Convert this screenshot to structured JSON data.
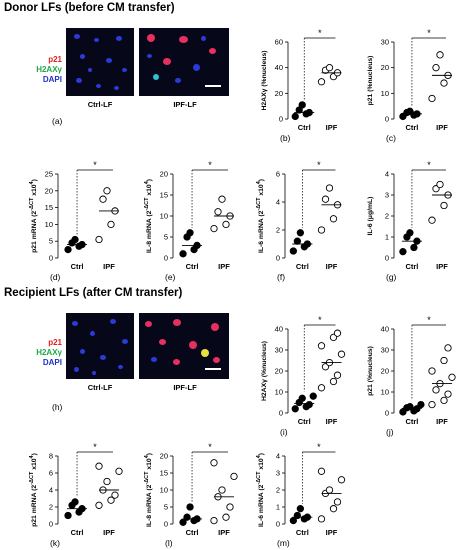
{
  "sections": [
    {
      "title": "Donor LFs (before CM transfer)"
    },
    {
      "title": "Recipient LFs (after CM transfer)"
    }
  ],
  "micrographs": [
    {
      "letter": "(a)",
      "left_label": "Ctrl-LF",
      "right_label": "IPF-LF",
      "stain_labels": [
        {
          "text": "p21",
          "color": "#e0201e"
        },
        {
          "text": "H2AXγ",
          "color": "#1ea84a"
        },
        {
          "text": "DAPI",
          "color": "#2030c8"
        }
      ]
    },
    {
      "letter": "(h)",
      "left_label": "Ctrl-LF",
      "right_label": "IPF-LF",
      "stain_labels": [
        {
          "text": "p21",
          "color": "#e0201e"
        },
        {
          "text": "H2AXγ",
          "color": "#1ea84a"
        },
        {
          "text": "DAPI",
          "color": "#2030c8"
        }
      ]
    }
  ],
  "chart_data": [
    {
      "id": "b",
      "type": "scatter",
      "letter": "(b)",
      "ylabel": "H2AXγ (%nucleus)",
      "ylim": [
        0,
        60
      ],
      "yticks": [
        "0",
        "20",
        "40",
        "60"
      ],
      "categories": [
        "Ctrl",
        "IPF"
      ],
      "significance": "*",
      "series": [
        {
          "values": [
            2,
            4,
            5,
            7,
            11
          ]
        },
        {
          "values": [
            29,
            33,
            36,
            38,
            40
          ]
        }
      ]
    },
    {
      "id": "c",
      "type": "scatter",
      "letter": "(c)",
      "ylabel": "p21 (%nucleus)",
      "ylim": [
        0,
        30
      ],
      "yticks": [
        "0",
        "10",
        "20",
        "30"
      ],
      "categories": [
        "Ctrl",
        "IPF"
      ],
      "significance": "*",
      "series": [
        {
          "values": [
            1,
            1.5,
            2,
            2.5,
            3
          ]
        },
        {
          "values": [
            8,
            14,
            17,
            20,
            25
          ]
        }
      ]
    },
    {
      "id": "d",
      "type": "scatter",
      "letter": "(d)",
      "ylabel": "p21 mRNA (2^-ΔCT x10^4)",
      "ylim": [
        0,
        25
      ],
      "yticks": [
        "0",
        "5",
        "10",
        "15",
        "20",
        "25"
      ],
      "categories": [
        "Ctrl",
        "IPF"
      ],
      "significance": "*",
      "series": [
        {
          "values": [
            2.5,
            3.5,
            4,
            4.5,
            5.5
          ]
        },
        {
          "values": [
            5.5,
            10,
            14,
            17.5,
            20
          ]
        }
      ]
    },
    {
      "id": "e",
      "type": "scatter",
      "letter": "(e)",
      "ylabel": "IL-8 mRNA (2^-ΔCT x10^4)",
      "ylim": [
        0,
        20
      ],
      "yticks": [
        "0",
        "5",
        "10",
        "15",
        "20"
      ],
      "categories": [
        "Ctrl",
        "IPF"
      ],
      "significance": "*",
      "series": [
        {
          "values": [
            1,
            2,
            3,
            5,
            6
          ]
        },
        {
          "values": [
            7,
            8,
            10,
            11,
            14
          ]
        }
      ]
    },
    {
      "id": "f",
      "type": "scatter",
      "letter": "(f)",
      "ylabel": "IL-6 mRNA (2^-ΔCT x10^4)",
      "ylim": [
        0,
        6
      ],
      "yticks": [
        "0",
        "2",
        "4",
        "6"
      ],
      "categories": [
        "Ctrl",
        "IPF"
      ],
      "significance": "*",
      "series": [
        {
          "values": [
            0.5,
            0.8,
            1.0,
            1.2,
            1.8
          ]
        },
        {
          "values": [
            2.0,
            2.8,
            3.8,
            4.2,
            5.0
          ]
        }
      ]
    },
    {
      "id": "g",
      "type": "scatter",
      "letter": "(g)",
      "ylabel": "IL-6 (μg/mL)",
      "ylim": [
        0,
        4
      ],
      "yticks": [
        "0",
        "1",
        "2",
        "3",
        "4"
      ],
      "categories": [
        "Ctrl",
        "IPF"
      ],
      "significance": "*",
      "series": [
        {
          "values": [
            0.3,
            0.5,
            0.8,
            1.0,
            1.2
          ]
        },
        {
          "values": [
            1.8,
            2.5,
            3.0,
            3.3,
            3.5
          ]
        }
      ]
    },
    {
      "id": "i",
      "type": "scatter",
      "letter": "(i)",
      "ylabel": "H2AXγ (%nucleus)",
      "ylim": [
        0,
        40
      ],
      "yticks": [
        "0",
        "10",
        "20",
        "30",
        "40"
      ],
      "categories": [
        "Ctrl",
        "IPF"
      ],
      "significance": "*",
      "series": [
        {
          "values": [
            2,
            3,
            4,
            5,
            7,
            8
          ]
        },
        {
          "values": [
            12,
            15,
            18,
            22,
            24,
            28,
            32,
            36,
            38
          ]
        }
      ]
    },
    {
      "id": "j",
      "type": "scatter",
      "letter": "(j)",
      "ylabel": "p21 (%nucleus)",
      "ylim": [
        0,
        40
      ],
      "yticks": [
        "0",
        "10",
        "20",
        "30",
        "40"
      ],
      "categories": [
        "Ctrl",
        "IPF"
      ],
      "significance": "*",
      "series": [
        {
          "values": [
            0.5,
            1,
            2,
            2.5,
            3,
            4
          ]
        },
        {
          "values": [
            4,
            6,
            9,
            11,
            14,
            17,
            20,
            25,
            31
          ]
        }
      ]
    },
    {
      "id": "k",
      "type": "scatter",
      "letter": "(k)",
      "ylabel": "p21 mRNA (2^-ΔCT x10^4)",
      "ylim": [
        0,
        8
      ],
      "yticks": [
        "0",
        "2",
        "4",
        "6",
        "8"
      ],
      "categories": [
        "Ctrl",
        "IPF"
      ],
      "significance": "*",
      "series": [
        {
          "values": [
            1.0,
            1.4,
            1.8,
            2.2,
            2.6
          ]
        },
        {
          "values": [
            2.2,
            2.8,
            3.4,
            4.0,
            5.0,
            6.2,
            6.8
          ]
        }
      ]
    },
    {
      "id": "l",
      "type": "scatter",
      "letter": "(l)",
      "ylabel": "IL-8 mRNA (2^-ΔCT x10^4)",
      "ylim": [
        0,
        20
      ],
      "yticks": [
        "0",
        "5",
        "10",
        "15",
        "20"
      ],
      "categories": [
        "Ctrl",
        "IPF"
      ],
      "significance": "*",
      "series": [
        {
          "values": [
            0.5,
            1,
            1.5,
            2,
            5
          ]
        },
        {
          "values": [
            1,
            2,
            5,
            8,
            10,
            14,
            18
          ]
        }
      ]
    },
    {
      "id": "m",
      "type": "scatter",
      "letter": "(m)",
      "ylabel": "IL-6 mRNA (2^-ΔCT x10^4)",
      "ylim": [
        0,
        4
      ],
      "yticks": [
        "0",
        "1",
        "2",
        "3",
        "4"
      ],
      "categories": [
        "Ctrl",
        "IPF"
      ],
      "significance": "*",
      "series": [
        {
          "values": [
            0.2,
            0.3,
            0.4,
            0.5,
            0.9
          ]
        },
        {
          "values": [
            0.3,
            0.9,
            1.3,
            1.8,
            2.0,
            2.6,
            3.1
          ]
        }
      ]
    }
  ]
}
